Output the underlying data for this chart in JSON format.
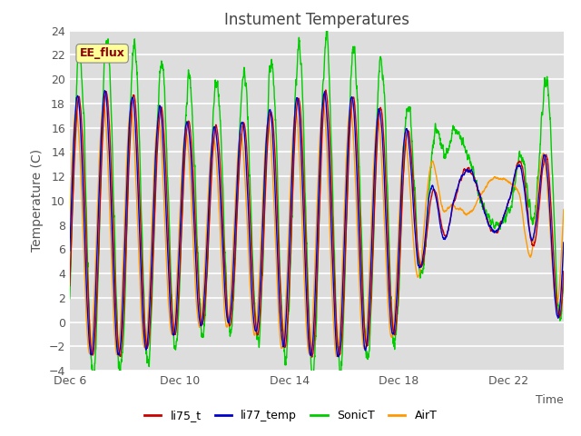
{
  "title": "Instument Temperatures",
  "ylabel": "Temperature (C)",
  "xlabel": "Time",
  "ylim": [
    -4,
    24
  ],
  "yticks": [
    -4,
    -2,
    0,
    2,
    4,
    6,
    8,
    10,
    12,
    14,
    16,
    18,
    20,
    22,
    24
  ],
  "xtick_labels": [
    "Dec 6",
    "Dec 10",
    "Dec 14",
    "Dec 18",
    "Dec 22"
  ],
  "xtick_positions": [
    0,
    4,
    8,
    12,
    16
  ],
  "legend_labels": [
    "li75_t",
    "li77_temp",
    "SonicT",
    "AirT"
  ],
  "legend_colors": [
    "#cc0000",
    "#0000cc",
    "#00cc00",
    "#ff9900"
  ],
  "line_colors": {
    "li75_t": "#cc0000",
    "li77_temp": "#0000cc",
    "SonicT": "#00cc00",
    "AirT": "#ff9900"
  },
  "fig_bg_color": "#ffffff",
  "plot_bg_color": "#dddddd",
  "watermark_text": "EE_flux",
  "watermark_color": "#8B0000",
  "watermark_bg": "#ffff99",
  "watermark_border": "#888888",
  "title_color": "#444444",
  "axis_label_color": "#555555",
  "tick_label_color": "#555555",
  "grid_color": "#ffffff",
  "total_days": 18,
  "n_points": 3000,
  "figsize": [
    6.4,
    4.8
  ],
  "dpi": 100
}
